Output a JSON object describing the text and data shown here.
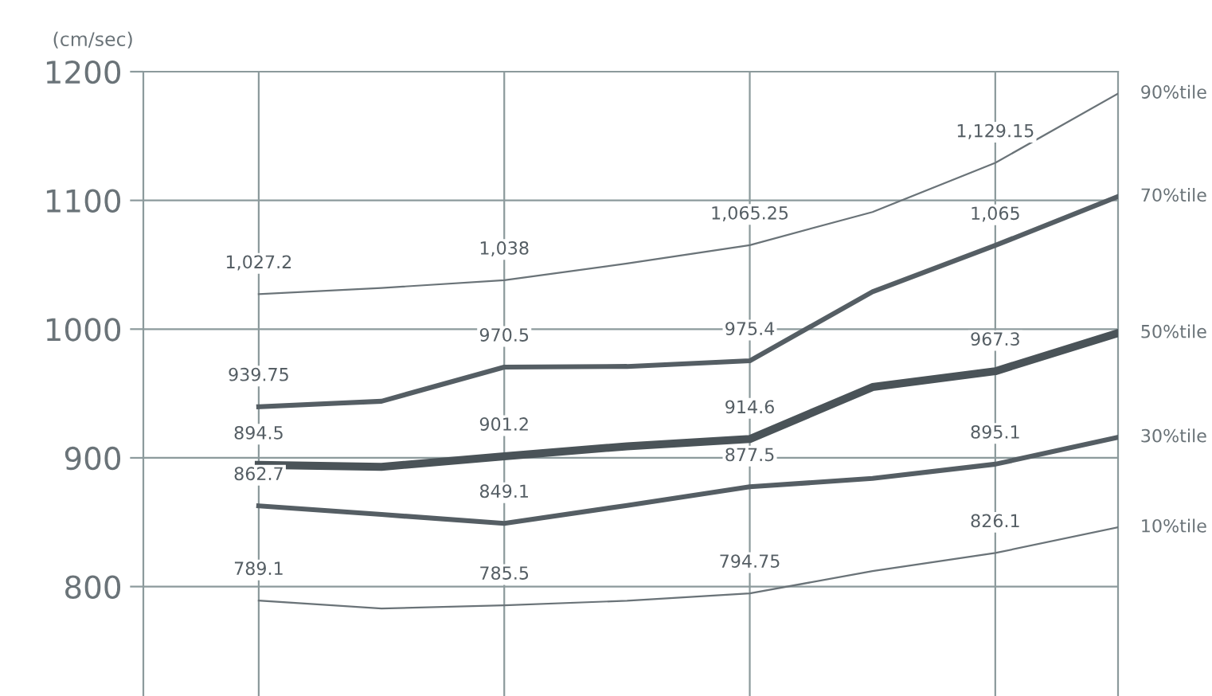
{
  "chart_data": {
    "type": "line",
    "ylabel": "(cm/sec)",
    "categories": [
      null,
      null,
      null,
      null,
      null,
      null,
      null,
      null
    ],
    "series": [
      {
        "name": "90%tile",
        "color": "#6a7378",
        "values": [
          1027.2,
          1032,
          1038,
          1051,
          1065.25,
          1091,
          1129.15,
          1183
        ],
        "value_labels": [
          "1,027.2",
          null,
          "1,038",
          null,
          "1,065.25",
          null,
          "1,129.15",
          null
        ]
      },
      {
        "name": "70%tile",
        "color": "#555e64",
        "values": [
          939.75,
          944,
          970.5,
          971,
          975.4,
          1029,
          1065,
          1103
        ],
        "value_labels": [
          "939.75",
          null,
          "970.5",
          null,
          "975.4",
          null,
          "1,065",
          null
        ]
      },
      {
        "name": "50%tile",
        "color": "#4a5358",
        "values": [
          894.5,
          893,
          901.2,
          909,
          914.6,
          955,
          967.3,
          997
        ],
        "value_labels": [
          "894.5",
          null,
          "901.2",
          null,
          "914.6",
          null,
          "967.3",
          null
        ]
      },
      {
        "name": "30%tile",
        "color": "#555e64",
        "values": [
          862.7,
          856,
          849.1,
          863,
          877.5,
          884,
          895.1,
          916
        ],
        "value_labels": [
          "862.7",
          null,
          "849.1",
          null,
          "877.5",
          null,
          "895.1",
          null
        ]
      },
      {
        "name": "10%tile",
        "color": "#6a7378",
        "values": [
          789.1,
          783,
          785.5,
          789,
          794.75,
          812,
          826.1,
          846
        ],
        "value_labels": [
          "789.1",
          null,
          "785.5",
          null,
          "794.75",
          null,
          "826.1",
          null
        ]
      }
    ],
    "ylim": [
      715,
      1200
    ],
    "yticks": [
      800,
      900,
      1000,
      1100,
      1200
    ],
    "grid": true,
    "legend": false,
    "marker": "none",
    "line_style": "solid"
  }
}
